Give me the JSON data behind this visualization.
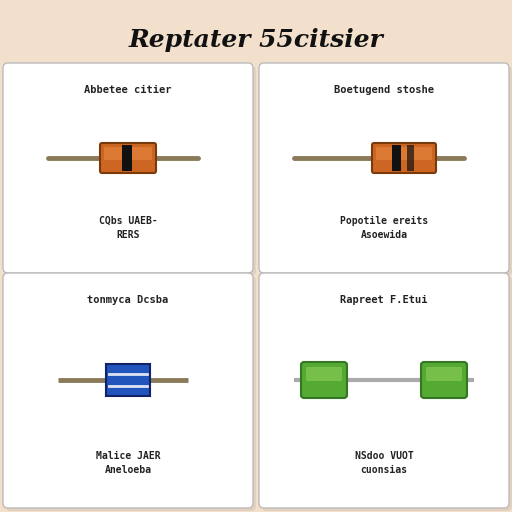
{
  "title": "Reptater 55citsier",
  "background_color": "#f2e0cc",
  "card_bg": "#ffffff",
  "title_fontsize": 18,
  "cards": [
    {
      "label_top": "Abbetee citier",
      "label_bottom": "CQbs UAEB-\nRERS",
      "resistor_type": "through_hole_orange",
      "variant": 1
    },
    {
      "label_top": "Boetugend stoshe",
      "label_bottom": "Popotile ereits\nAsoewida",
      "resistor_type": "through_hole_orange",
      "variant": 2
    },
    {
      "label_top": "tonmyca Dcsba",
      "label_bottom": "Malice JAER\nAneloeba",
      "resistor_type": "smd_blue",
      "variant": 1
    },
    {
      "label_top": "Rapreet F.Etui",
      "label_bottom": "NSdoo VUOT\ncuonsias",
      "resistor_type": "cylindrical_green",
      "variant": 1
    }
  ],
  "lead_color": "#8B7A5A",
  "orange_body": "#CC6622",
  "orange_highlight": "#E88840",
  "blue_body": "#2255BB",
  "blue_highlight": "#4477DD",
  "green_body": "#55AA33",
  "green_highlight": "#88CC55",
  "green_dark": "#337722"
}
